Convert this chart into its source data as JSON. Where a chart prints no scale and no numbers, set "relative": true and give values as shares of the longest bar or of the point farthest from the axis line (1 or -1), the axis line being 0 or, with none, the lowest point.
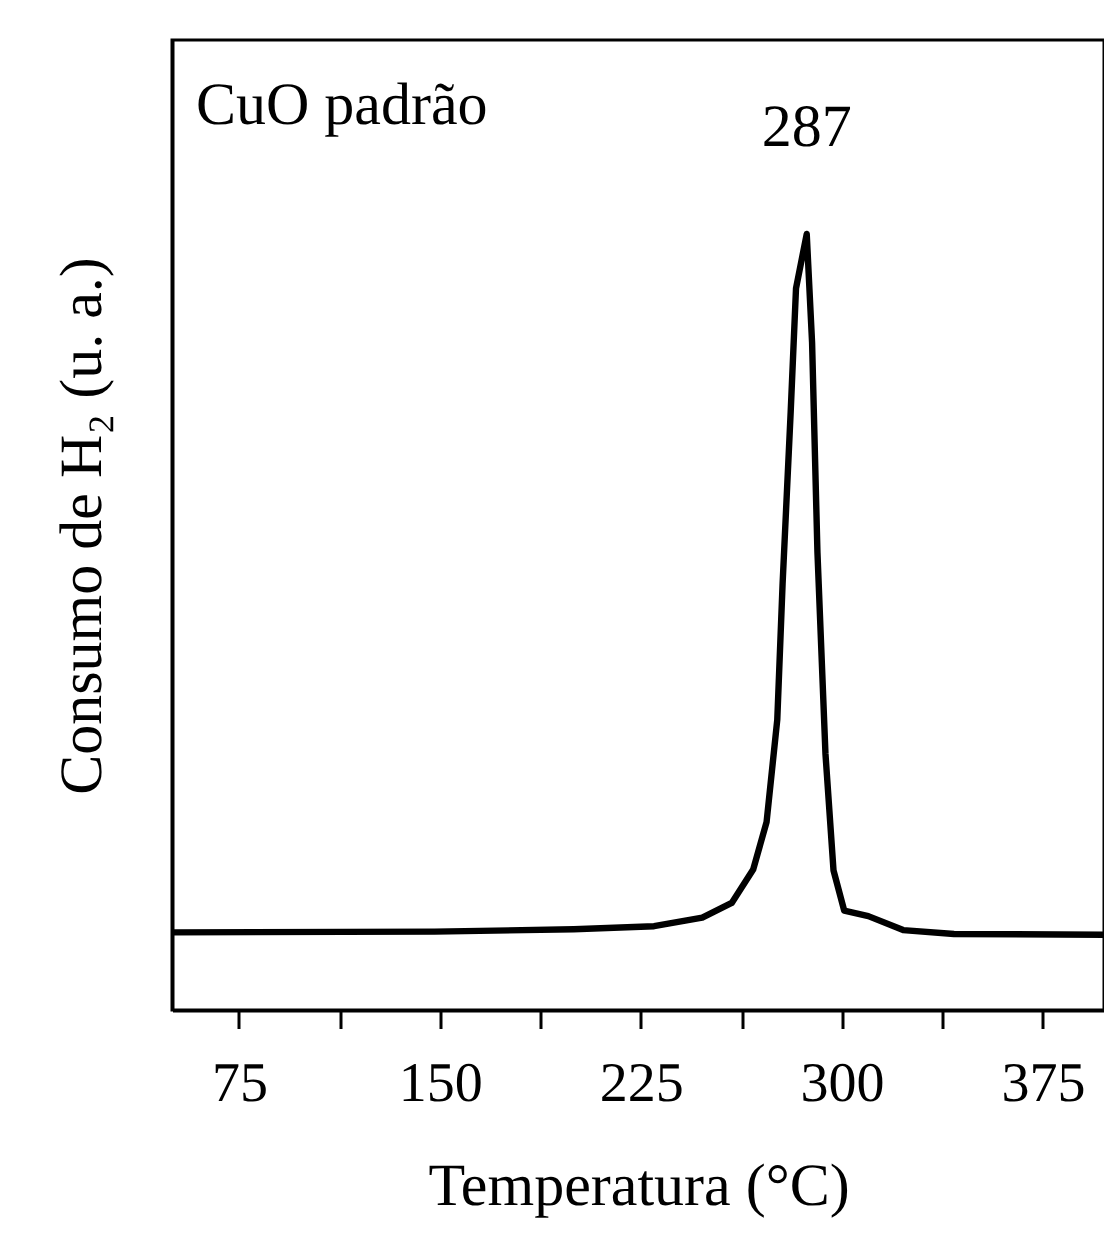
{
  "chart_data": {
    "type": "line",
    "xlabel": "Temperatura (°C)",
    "ylabel": "Consumo de H₂ (u. a.)",
    "relative": true,
    "xlim": [
      50,
      398
    ],
    "xticks": [
      75,
      {
        "value": 112.5,
        "label": null
      },
      150,
      {
        "value": 187.5,
        "label": null
      },
      225,
      {
        "value": 262.5,
        "label": null
      },
      300,
      {
        "value": 337.5,
        "label": null
      },
      375
    ],
    "x": [
      50,
      148,
      200,
      230,
      248,
      259,
      267,
      272,
      276,
      278,
      281,
      283,
      287,
      289,
      291,
      294,
      297,
      301,
      310,
      323,
      342,
      398
    ],
    "series": [
      {
        "color": "#000000",
        "values": [
          0.1,
          0.101,
          0.104,
          0.108,
          0.119,
          0.138,
          0.181,
          0.242,
          0.374,
          0.55,
          0.77,
          0.93,
          1.0,
          0.86,
          0.59,
          0.33,
          0.18,
          0.128,
          0.121,
          0.103,
          0.098,
          0.097
        ]
      }
    ],
    "annotations": [
      "CuO padrão",
      {
        "text": "287",
        "x": 287,
        "y": 1.0
      }
    ],
    "grid": false,
    "marker": "none",
    "line_style": "solid"
  }
}
